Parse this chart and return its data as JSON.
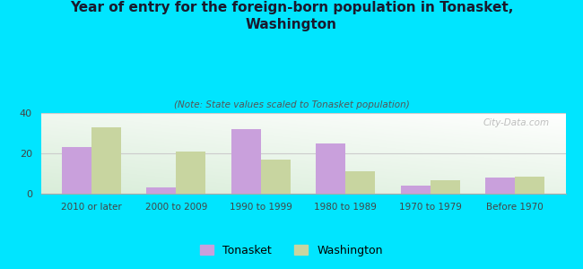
{
  "title": "Year of entry for the foreign-born population in Tonasket,\nWashington",
  "subtitle": "(Note: State values scaled to Tonasket population)",
  "categories": [
    "2010 or later",
    "2000 to 2009",
    "1990 to 1999",
    "1980 to 1989",
    "1970 to 1979",
    "Before 1970"
  ],
  "tonasket": [
    23,
    3,
    32,
    25,
    4,
    8
  ],
  "washington": [
    33,
    21,
    17,
    11,
    6.5,
    8.5
  ],
  "tonasket_color": "#c9a0dc",
  "washington_color": "#c8d5a0",
  "background_color": "#00e5ff",
  "ylim": [
    0,
    40
  ],
  "yticks": [
    0,
    20,
    40
  ],
  "bar_width": 0.35,
  "legend_labels": [
    "Tonasket",
    "Washington"
  ],
  "watermark": "City-Data.com"
}
